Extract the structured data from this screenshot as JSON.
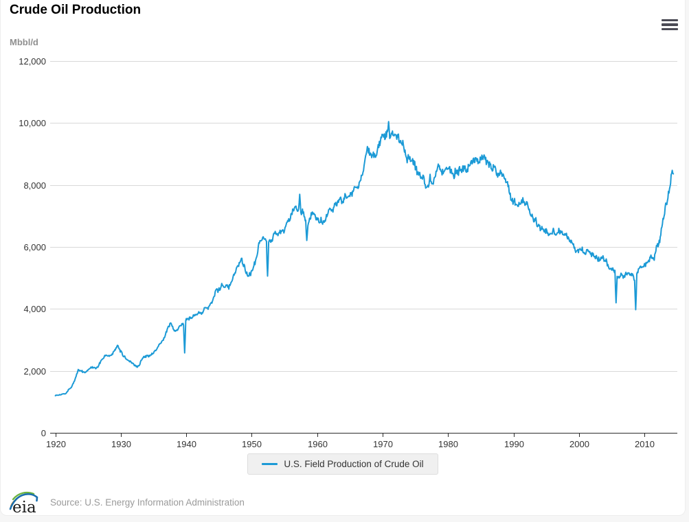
{
  "header": {
    "title": "Crude Oil Production",
    "menu_icon": "hamburger-menu-icon"
  },
  "chart_data": {
    "type": "line",
    "title": "Crude Oil Production",
    "unit_label": "Mbbl/d",
    "legend_position": "bottom-center",
    "grid": "horizontal-only",
    "x_axis": {
      "range": [
        1919.2,
        2015.2
      ],
      "tick_labels": [
        "1920",
        "1930",
        "1940",
        "1950",
        "1960",
        "1970",
        "1980",
        "1990",
        "2000",
        "2010"
      ]
    },
    "y_axis": {
      "min": 0,
      "max": 12000,
      "tick_interval": 2000,
      "ticks": [
        {
          "value": 0,
          "label": "0"
        },
        {
          "value": 2000,
          "label": "2,000"
        },
        {
          "value": 4000,
          "label": "4,000"
        },
        {
          "value": 6000,
          "label": "6,000"
        },
        {
          "value": 8000,
          "label": "8,000"
        },
        {
          "value": 10000,
          "label": "10,000"
        },
        {
          "value": 12000,
          "label": "12,000"
        }
      ]
    },
    "series": [
      {
        "name": "U.S. Field Production of Crude Oil",
        "color": "#1c9ad6",
        "frequency": "monthly",
        "x_start": 1920.0,
        "x_end": 2014.45,
        "years_start": 1920,
        "annual_averages": [
          1214,
          1294,
          1527,
          2007,
          1951,
          2092,
          2117,
          2469,
          2463,
          2760,
          2460,
          2332,
          2145,
          2481,
          2488,
          2730,
          3001,
          3504,
          3327,
          3466,
          3697,
          3847,
          3799,
          4125,
          4584,
          4695,
          4751,
          5088,
          5520,
          5046,
          5407,
          6158,
          6256,
          6458,
          6342,
          6807,
          7151,
          7170,
          6710,
          7054,
          7035,
          7183,
          7332,
          7542,
          7614,
          7804,
          8295,
          8810,
          9096,
          9238,
          9637,
          9463,
          9441,
          9208,
          8774,
          8375,
          8132,
          8245,
          8707,
          8552,
          8597,
          8572,
          8649,
          8688,
          8879,
          8971,
          8680,
          8349,
          8140,
          7613,
          7355,
          7417,
          7171,
          6847,
          6662,
          6560,
          6465,
          6452,
          6252,
          5881,
          5822,
          5801,
          5746,
          5681,
          5419,
          5178,
          5102,
          5064,
          5000,
          5353,
          5482,
          5645,
          6497,
          7468,
          8550
        ],
        "monthly_extremes": [
          {
            "x": 1939.75,
            "value": 2580
          },
          {
            "x": 1952.4,
            "value": 5060
          },
          {
            "x": 1957.3,
            "value": 7700
          },
          {
            "x": 1958.4,
            "value": 6210
          },
          {
            "x": 1970.9,
            "value": 10044
          },
          {
            "x": 2005.7,
            "value": 4197
          },
          {
            "x": 2008.7,
            "value": 3974
          }
        ]
      }
    ]
  },
  "legend": {
    "label": "U.S. Field Production of Crude Oil"
  },
  "footer": {
    "logo_text": "eia",
    "source": "Source: U.S. Energy Information Administration",
    "logo_colors": {
      "arc_green": "#6cb33f",
      "arc_blue": "#1b6fae",
      "arc_orange": "#f0a03c",
      "text": "#1a1a1a"
    }
  },
  "icon_colors": {
    "hamburger": "#4a4a54"
  }
}
